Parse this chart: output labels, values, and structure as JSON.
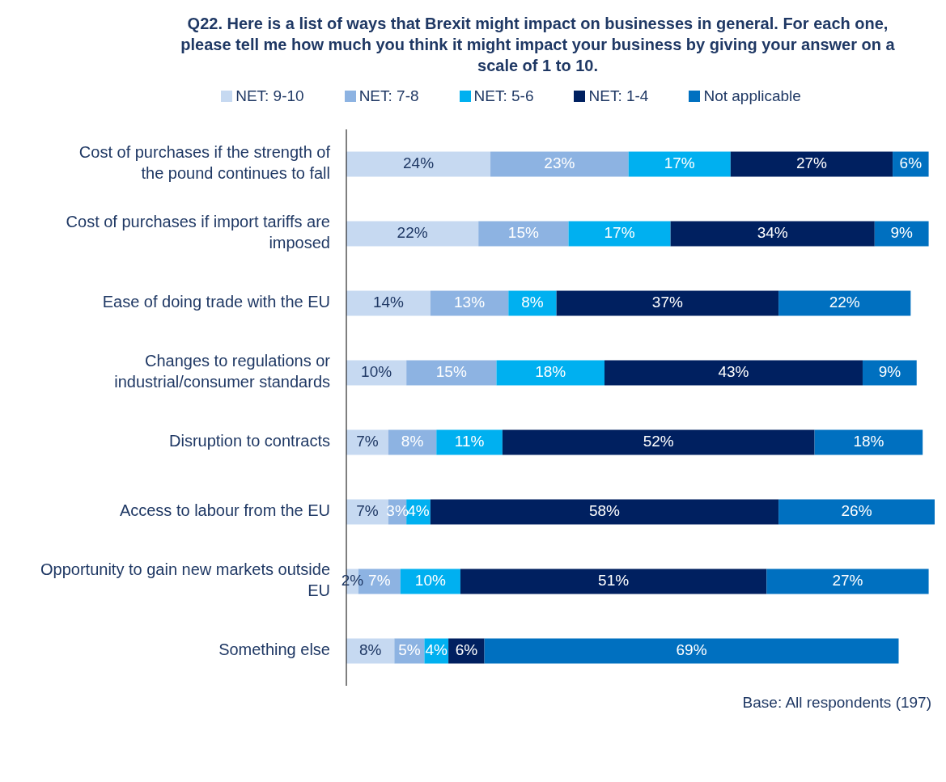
{
  "chart_data": {
    "type": "bar",
    "orientation": "horizontal",
    "stacked": true,
    "title": "Q22.  Here is a list of ways that Brexit might impact on businesses in general. For each one, please tell me how much you think it might impact your business by giving your answer on a scale of 1 to 10.",
    "categories": [
      "Cost of purchases if the strength of the pound continues to fall",
      "Cost of purchases if import tariffs are imposed",
      "Ease of doing trade with the EU",
      "Changes to regulations or industrial/consumer standards",
      "Disruption to contracts",
      "Access to labour from the EU",
      "Opportunity to gain new markets outside EU",
      "Something else"
    ],
    "series": [
      {
        "name": "NET: 9-10",
        "color": "#c6d9f1",
        "values": [
          24,
          22,
          14,
          10,
          7,
          7,
          2,
          8
        ],
        "value_labels": [
          "24%",
          "22%",
          "14%",
          "10%",
          "7%",
          "7%",
          "2%",
          "8%"
        ]
      },
      {
        "name": "NET: 7-8",
        "color": "#8db3e2",
        "values": [
          23,
          15,
          13,
          15,
          8,
          3,
          7,
          5
        ],
        "value_labels": [
          "23%",
          "15%",
          "13%",
          "15%",
          "8%",
          "3%",
          "7%",
          "5%"
        ]
      },
      {
        "name": "NET: 5-6",
        "color": "#00b0f0",
        "values": [
          17,
          17,
          8,
          18,
          11,
          4,
          10,
          4
        ],
        "value_labels": [
          "17%",
          "17%",
          "8%",
          "18%",
          "11%",
          "4%",
          "10%",
          "4%"
        ]
      },
      {
        "name": "NET: 1-4",
        "color": "#002060",
        "values": [
          27,
          34,
          37,
          43,
          52,
          58,
          51,
          6
        ],
        "value_labels": [
          "27%",
          "34%",
          "37%",
          "43%",
          "52%",
          "58%",
          "51%",
          "6%"
        ]
      },
      {
        "name": "Not applicable",
        "color": "#0070c0",
        "values": [
          6,
          9,
          22,
          9,
          18,
          26,
          27,
          69
        ],
        "value_labels": [
          "6%",
          "9%",
          "22%",
          "9%",
          "18%",
          "26%",
          "27%",
          "69%"
        ]
      }
    ],
    "tick_labels": "y",
    "grid": false,
    "legend": "top",
    "annotations": [
      "Base: All respondents (197)"
    ]
  }
}
